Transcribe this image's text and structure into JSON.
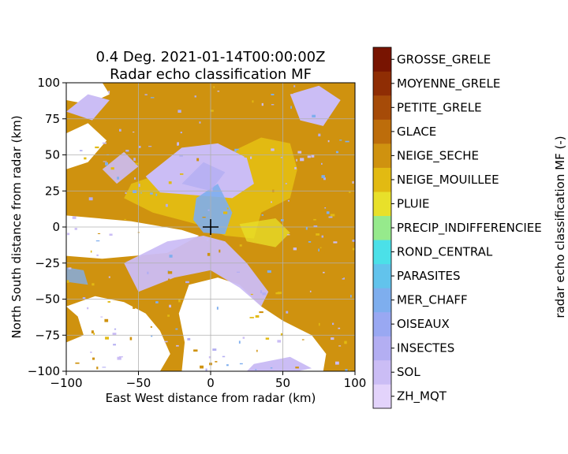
{
  "chart_data": {
    "type": "heatmap",
    "title": "0.4 Deg. 2021-01-14T00:00:00Z",
    "subtitle": "Radar echo classification MF",
    "xlabel": "East West distance from radar (km)",
    "ylabel": "North South distance from radar (km)",
    "xlim": [
      -100,
      100
    ],
    "ylim": [
      -100,
      100
    ],
    "xticks": [
      -100,
      -50,
      0,
      50,
      100
    ],
    "yticks": [
      -100,
      -75,
      -50,
      -25,
      0,
      25,
      50,
      75,
      100
    ],
    "grid": true,
    "radar_marker": "+",
    "radar_position": [
      0,
      0
    ],
    "colorbar": {
      "label": "radar echo classification MF (-)",
      "classes": [
        {
          "name": "ZH_MQT",
          "color": "#e3d3fb"
        },
        {
          "name": "SOL",
          "color": "#cbbdf5"
        },
        {
          "name": "INSECTES",
          "color": "#b3aef2"
        },
        {
          "name": "OISEAUX",
          "color": "#99a8f2"
        },
        {
          "name": "MER_CHAFF",
          "color": "#7eaeee"
        },
        {
          "name": "PARASITES",
          "color": "#62c3ec"
        },
        {
          "name": "ROND_CENTRAL",
          "color": "#4be0e8"
        },
        {
          "name": "PRECIP_INDIFFERENCIEE",
          "color": "#96ea8c"
        },
        {
          "name": "PLUIE",
          "color": "#e8e02a"
        },
        {
          "name": "NEIGE_MOUILLEE",
          "color": "#e2ba12"
        },
        {
          "name": "NEIGE_SECHE",
          "color": "#cf920f"
        },
        {
          "name": "GLACE",
          "color": "#bd6d0b"
        },
        {
          "name": "PETITE_GRELE",
          "color": "#a64b08"
        },
        {
          "name": "MOYENNE_GRELE",
          "color": "#8f2d04"
        },
        {
          "name": "GROSSE_GRELE",
          "color": "#781401"
        }
      ]
    }
  }
}
